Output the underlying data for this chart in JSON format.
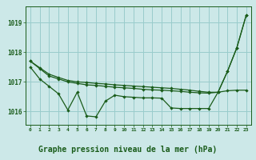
{
  "background_color": "#cce8e8",
  "plot_bg_color": "#cce8e8",
  "grid_color": "#99cccc",
  "line_color": "#1a5c1a",
  "xlabel": "Graphe pression niveau de la mer (hPa)",
  "xlabel_fontsize": 7,
  "ylabel_ticks": [
    1016,
    1017,
    1018,
    1019
  ],
  "xlim": [
    -0.5,
    23.5
  ],
  "ylim": [
    1015.55,
    1019.55
  ],
  "series_smooth": [
    1017.7,
    1017.45,
    1017.2,
    1017.1,
    1017.0,
    1016.95,
    1016.9,
    1016.88,
    1016.85,
    1016.82,
    1016.8,
    1016.78,
    1016.75,
    1016.73,
    1016.72,
    1016.7,
    1016.68,
    1016.65,
    1016.63,
    1016.62,
    1016.65,
    1016.7,
    1016.72,
    1016.72
  ],
  "series_trend": [
    1017.7,
    1017.48,
    1017.26,
    1017.15,
    1017.05,
    1017.0,
    1016.98,
    1016.95,
    1016.93,
    1016.9,
    1016.88,
    1016.86,
    1016.84,
    1016.82,
    1016.8,
    1016.78,
    1016.75,
    1016.72,
    1016.68,
    1016.65,
    1016.65,
    1017.35,
    1018.15,
    1019.25
  ],
  "series_volatile": [
    1017.5,
    1017.1,
    1016.85,
    1016.6,
    1016.05,
    1016.65,
    1015.85,
    1015.82,
    1016.35,
    1016.55,
    1016.5,
    1016.48,
    1016.46,
    1016.46,
    1016.45,
    1016.12,
    1016.1,
    1016.1,
    1016.1,
    1016.1,
    1016.65,
    1017.35,
    1018.15,
    1019.25
  ],
  "x": [
    0,
    1,
    2,
    3,
    4,
    5,
    6,
    7,
    8,
    9,
    10,
    11,
    12,
    13,
    14,
    15,
    16,
    17,
    18,
    19,
    20,
    21,
    22,
    23
  ]
}
